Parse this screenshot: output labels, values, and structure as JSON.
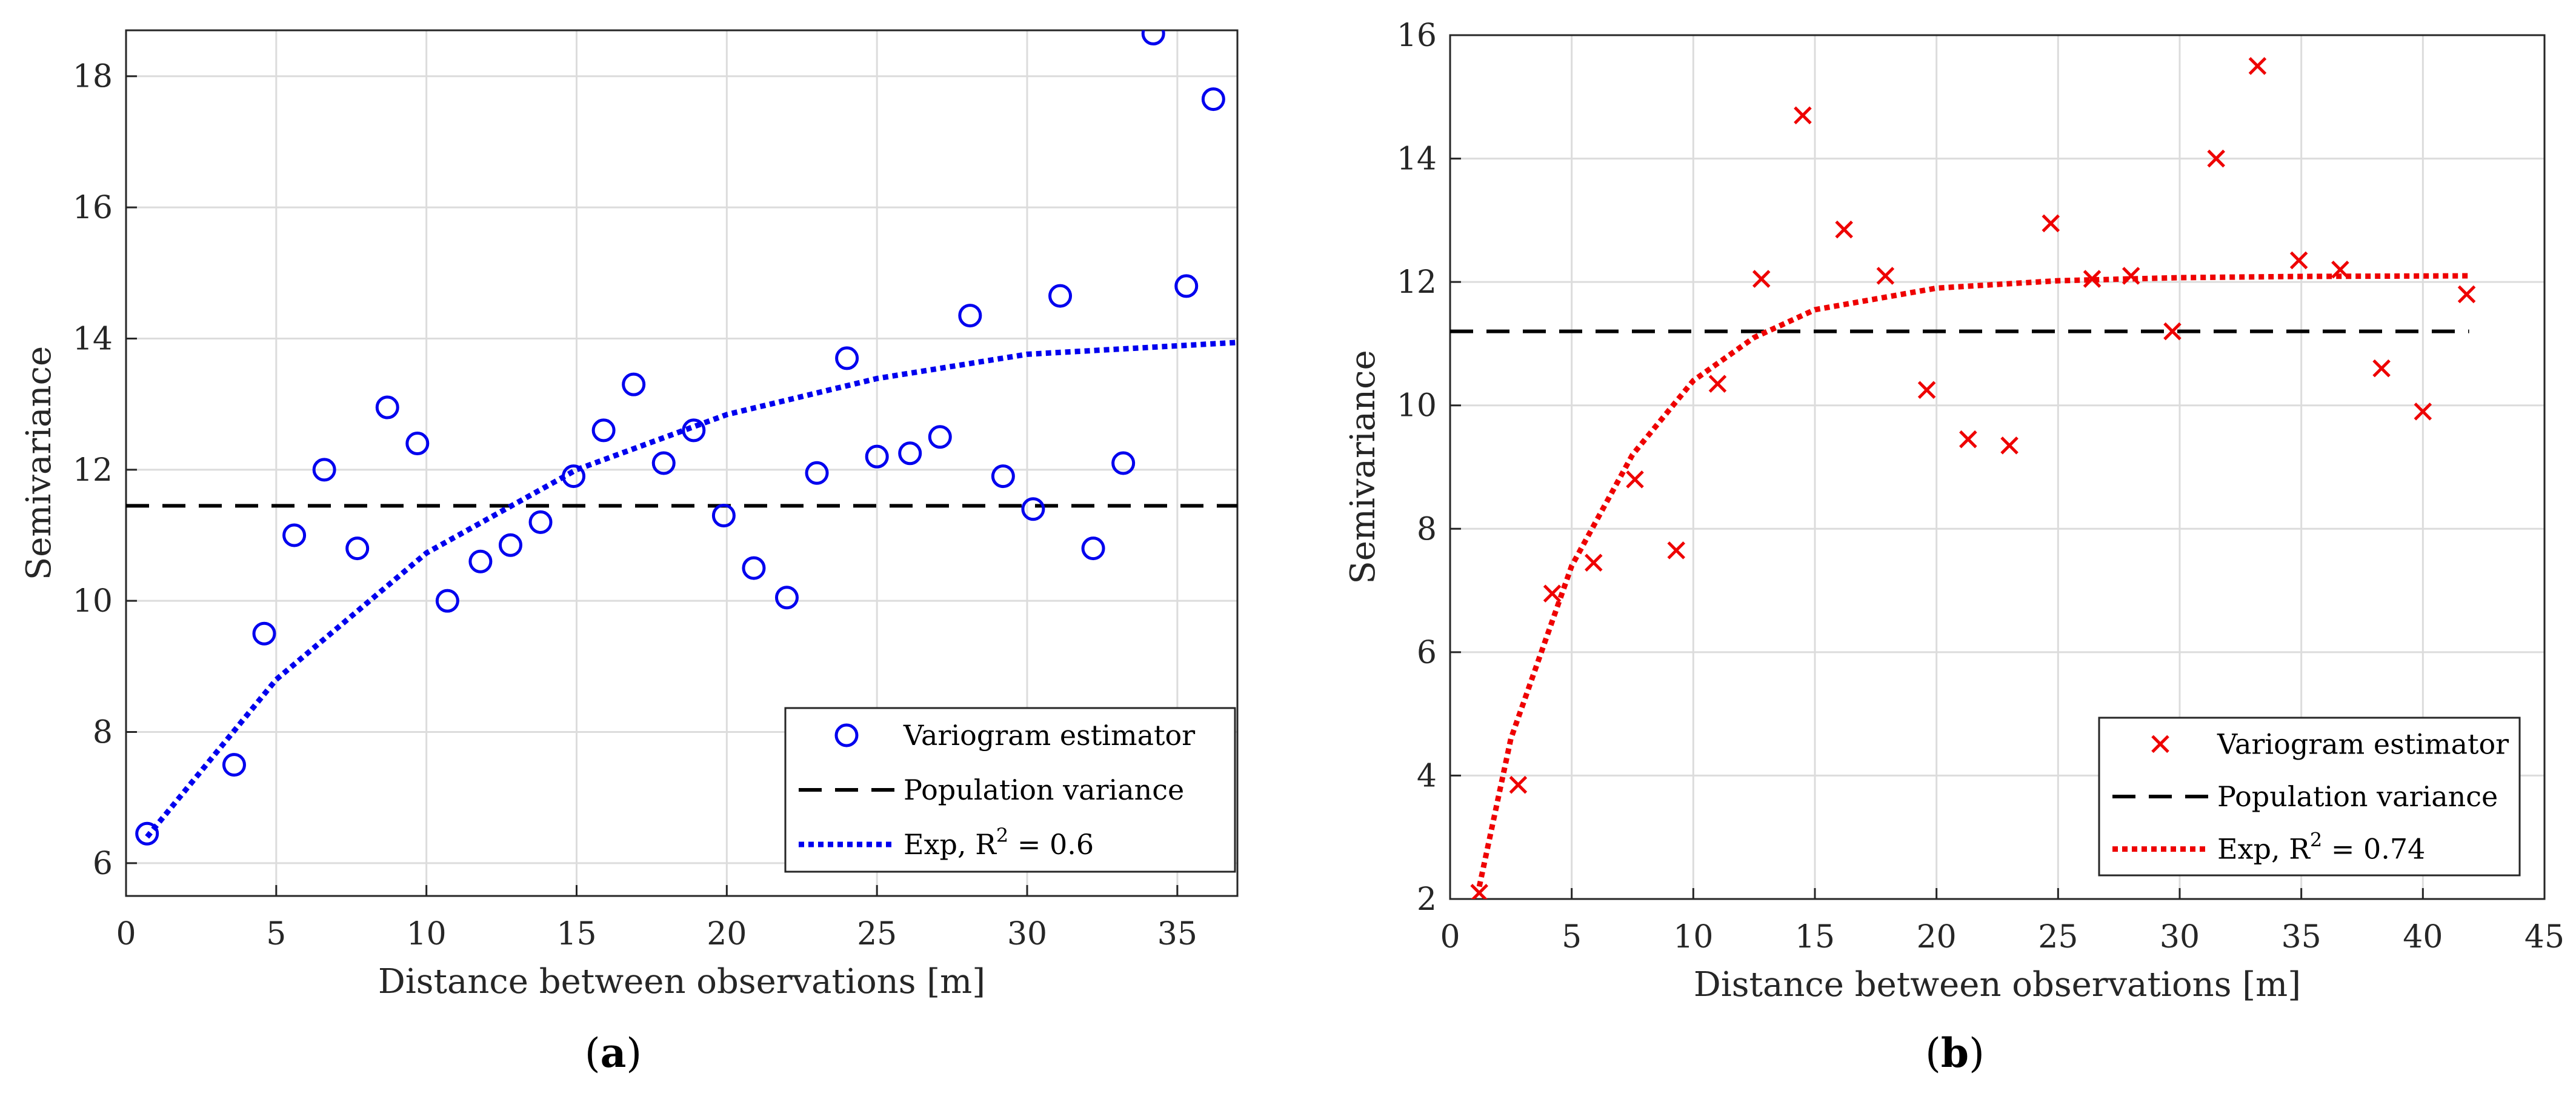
{
  "chart_data": [
    {
      "type": "scatter",
      "panel_label": "a",
      "xlabel": "Distance between observations [m]",
      "ylabel": "Semivariance",
      "xlim": [
        0,
        37
      ],
      "ylim": [
        5.5,
        18.7
      ],
      "xticks": [
        0,
        5,
        10,
        15,
        20,
        25,
        30,
        35
      ],
      "yticks": [
        6,
        8,
        10,
        12,
        14,
        16,
        18
      ],
      "grid": true,
      "legend_position": "bottom-right",
      "colors": {
        "points": "#0000ee",
        "fit": "#0000ee",
        "variance": "#000000"
      },
      "series": [
        {
          "name": "Variogram estimator",
          "marker": "circle",
          "x": [
            0.7,
            3.6,
            4.6,
            5.6,
            6.6,
            7.7,
            8.7,
            9.7,
            10.7,
            11.8,
            12.8,
            13.8,
            14.9,
            15.9,
            16.9,
            17.9,
            18.9,
            19.9,
            20.9,
            22.0,
            23.0,
            24.0,
            25.0,
            26.1,
            27.1,
            28.1,
            29.2,
            30.2,
            31.1,
            32.2,
            33.2,
            34.2,
            35.3,
            36.2
          ],
          "y": [
            6.45,
            7.5,
            9.5,
            11.0,
            12.0,
            10.8,
            12.95,
            12.4,
            10.0,
            10.6,
            10.85,
            11.2,
            11.9,
            12.6,
            13.3,
            12.1,
            12.6,
            11.3,
            10.5,
            10.05,
            11.95,
            13.7,
            12.2,
            12.25,
            12.5,
            14.35,
            11.9,
            11.4,
            14.65,
            10.8,
            12.1,
            18.65,
            14.8,
            17.65
          ]
        },
        {
          "name": "Population variance",
          "style": "dashed",
          "y_constant": 11.45,
          "x_range": [
            0,
            37
          ]
        },
        {
          "name": "Exp, R",
          "name_superscript": "2",
          "name_suffix": " = 0.6",
          "style": "dotted",
          "model": "exponential",
          "x": [
            0.7,
            5,
            10,
            15,
            20,
            25,
            30,
            37
          ],
          "y": [
            6.4,
            8.8,
            10.73,
            12.0,
            12.84,
            13.39,
            13.76,
            13.94
          ]
        }
      ]
    },
    {
      "type": "scatter",
      "panel_label": "b",
      "xlabel": "Distance between observations [m]",
      "ylabel": "Semivariance",
      "xlim": [
        0,
        45
      ],
      "ylim": [
        2,
        16
      ],
      "xticks": [
        0,
        5,
        10,
        15,
        20,
        25,
        30,
        35,
        40,
        45
      ],
      "yticks": [
        2,
        4,
        6,
        8,
        10,
        12,
        14,
        16
      ],
      "grid": true,
      "legend_position": "bottom-right",
      "colors": {
        "points": "#ee0000",
        "fit": "#ee0000",
        "variance": "#000000"
      },
      "series": [
        {
          "name": "Variogram estimator",
          "marker": "x",
          "x": [
            1.2,
            2.8,
            4.2,
            5.9,
            7.6,
            9.3,
            11.0,
            12.8,
            14.5,
            16.2,
            17.9,
            19.6,
            21.3,
            23.0,
            24.7,
            26.4,
            28.0,
            29.7,
            31.5,
            33.2,
            34.9,
            36.6,
            38.3,
            40.0,
            41.8
          ],
          "y": [
            2.1,
            3.85,
            6.95,
            7.45,
            8.8,
            7.65,
            10.35,
            12.05,
            14.7,
            12.85,
            12.1,
            10.25,
            9.45,
            9.35,
            12.95,
            12.05,
            12.1,
            11.2,
            14.0,
            15.5,
            12.35,
            12.2,
            10.6,
            9.9,
            11.8
          ]
        },
        {
          "name": "Population variance",
          "style": "dashed",
          "y_constant": 11.2,
          "x_range": [
            0,
            41.9
          ]
        },
        {
          "name": "Exp, R",
          "name_superscript": "2",
          "name_suffix": " = 0.74",
          "style": "dotted",
          "model": "exponential",
          "x": [
            1.2,
            2.5,
            5,
            7.5,
            10,
            12.5,
            15,
            20,
            25,
            30,
            35,
            41.9
          ],
          "y": [
            2.2,
            4.6,
            7.4,
            9.2,
            10.4,
            11.1,
            11.55,
            11.9,
            12.02,
            12.07,
            12.09,
            12.1
          ]
        }
      ]
    }
  ]
}
